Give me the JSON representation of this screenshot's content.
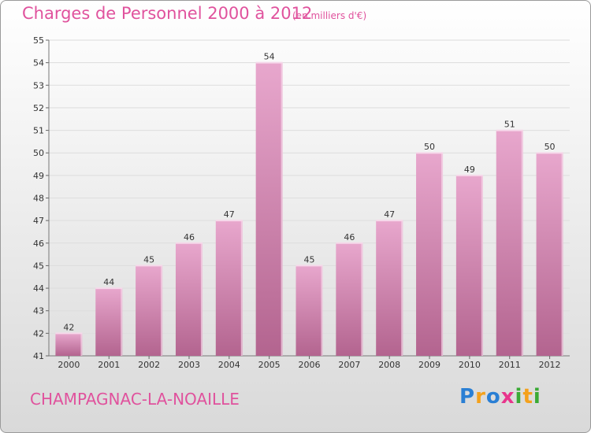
{
  "header": {
    "title": "Charges de Personnel 2000 à 2012",
    "subtitle": "(en milliers d'€)"
  },
  "footer": {
    "town": "CHAMPAGNAC-LA-NOAILLE",
    "logo": {
      "text": "Proxiti",
      "letters": [
        {
          "ch": "P",
          "color": "#2a7fd4"
        },
        {
          "ch": "r",
          "color": "#f4a11c"
        },
        {
          "ch": "o",
          "color": "#2a7fd4"
        },
        {
          "ch": "x",
          "color": "#e8358c"
        },
        {
          "ch": "i",
          "color": "#3aaa35"
        },
        {
          "ch": "t",
          "color": "#f4a11c"
        },
        {
          "ch": "i",
          "color": "#3aaa35"
        }
      ]
    }
  },
  "colors": {
    "bar_top": "#e8a7cd",
    "bar_bottom": "#b3648f",
    "bar_edge": "#f6d8ea",
    "title": "#e0529d"
  },
  "chart_data": {
    "type": "bar",
    "categories": [
      "2000",
      "2001",
      "2002",
      "2003",
      "2004",
      "2005",
      "2006",
      "2007",
      "2008",
      "2009",
      "2010",
      "2011",
      "2012"
    ],
    "values": [
      42,
      44,
      45,
      46,
      47,
      54,
      45,
      46,
      47,
      50,
      49,
      51,
      50
    ],
    "ylim": [
      41,
      55
    ],
    "yticks": [
      41,
      42,
      43,
      44,
      45,
      46,
      47,
      48,
      49,
      50,
      51,
      52,
      53,
      54,
      55
    ],
    "grid": true
  }
}
